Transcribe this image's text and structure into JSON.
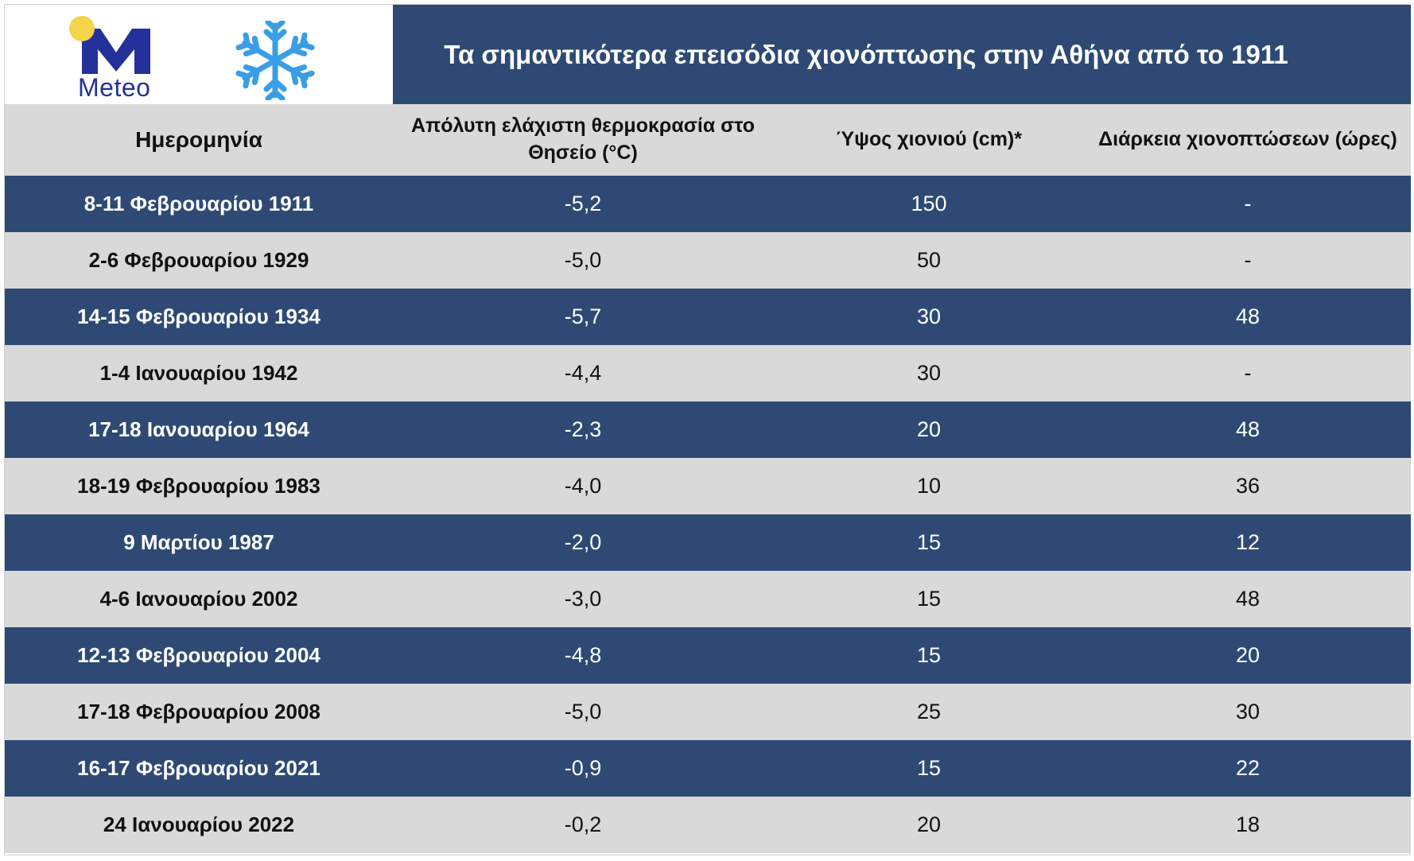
{
  "logo": {
    "text": "Meteo",
    "brand_color": "#25319a",
    "sun_color": "#f5d34a",
    "icon": "snowflake-icon",
    "snow_color": "#3a9ee6"
  },
  "title": "Τα σημαντικότερα επεισόδια χιονόπτωσης στην Αθήνα από το 1911",
  "colors": {
    "header_bg": "#2e4a74",
    "light_row": "#d9d9d9",
    "dark_row": "#2e4a74"
  },
  "table": {
    "headers": [
      "Ημερομηνία",
      "Απόλυτη ελάχιστη θερμοκρασία στο Θησείο (°C)",
      "Ύψος χιονιού (cm)*",
      "Διάρκεια χιονοπτώσεων (ώρες)"
    ],
    "rows": [
      [
        "8-11 Φεβρουαρίου 1911",
        "-5,2",
        "150",
        "-"
      ],
      [
        "2-6 Φεβρουαρίου 1929",
        "-5,0",
        "50",
        "-"
      ],
      [
        "14-15 Φεβρουαρίου 1934",
        "-5,7",
        "30",
        "48"
      ],
      [
        "1-4 Ιανουαρίου 1942",
        "-4,4",
        "30",
        "-"
      ],
      [
        "17-18 Ιανουαρίου 1964",
        "-2,3",
        "20",
        "48"
      ],
      [
        "18-19 Φεβρουαρίου 1983",
        "-4,0",
        "10",
        "36"
      ],
      [
        "9 Μαρτίου 1987",
        "-2,0",
        "15",
        "12"
      ],
      [
        "4-6 Ιανουαρίου 2002",
        "-3,0",
        "15",
        "48"
      ],
      [
        "12-13 Φεβρουαρίου 2004",
        "-4,8",
        "15",
        "20"
      ],
      [
        "17-18 Φεβρουαρίου 2008",
        "-5,0",
        "25",
        "30"
      ],
      [
        "16-17 Φεβρουαρίου 2021",
        "-0,9",
        "15",
        "22"
      ],
      [
        "24 Ιανουαρίου 2022",
        "-0,2",
        "20",
        "18"
      ]
    ]
  }
}
